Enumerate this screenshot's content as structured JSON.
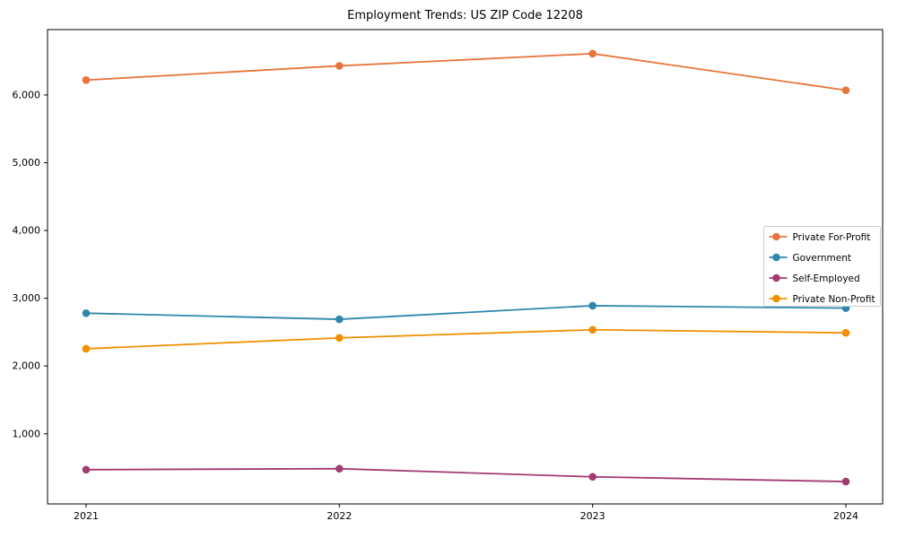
{
  "figure": {
    "background": "#ffffff",
    "axis_color": "#000000",
    "legend_border_color": "#cccccc"
  },
  "chart_data": {
    "type": "line",
    "title": "Employment Trends: US ZIP Code 12208",
    "xlabel": "",
    "ylabel": "",
    "grid": false,
    "legend_position": "center right",
    "marker": "o",
    "x": [
      2021,
      2022,
      2023,
      2024
    ],
    "x_tick_labels": [
      "2021",
      "2022",
      "2023",
      "2024"
    ],
    "y_ticks": [
      1000,
      2000,
      3000,
      4000,
      5000,
      6000
    ],
    "y_tick_labels": [
      "1,000",
      "2,000",
      "3,000",
      "4,000",
      "5,000",
      "6,000"
    ],
    "ylim": [
      -35,
      6965
    ],
    "series": [
      {
        "name": "Private For-Profit",
        "color": "#E8743B",
        "values": [
          6220,
          6430,
          6610,
          6070
        ]
      },
      {
        "name": "Government",
        "color": "#2E86AB",
        "values": [
          2780,
          2690,
          2890,
          2855
        ]
      },
      {
        "name": "Self-Employed",
        "color": "#A23B72",
        "values": [
          470,
          485,
          365,
          295
        ]
      },
      {
        "name": "Private Non-Profit",
        "color": "#F18F01",
        "values": [
          2255,
          2415,
          2535,
          2490
        ]
      }
    ]
  }
}
